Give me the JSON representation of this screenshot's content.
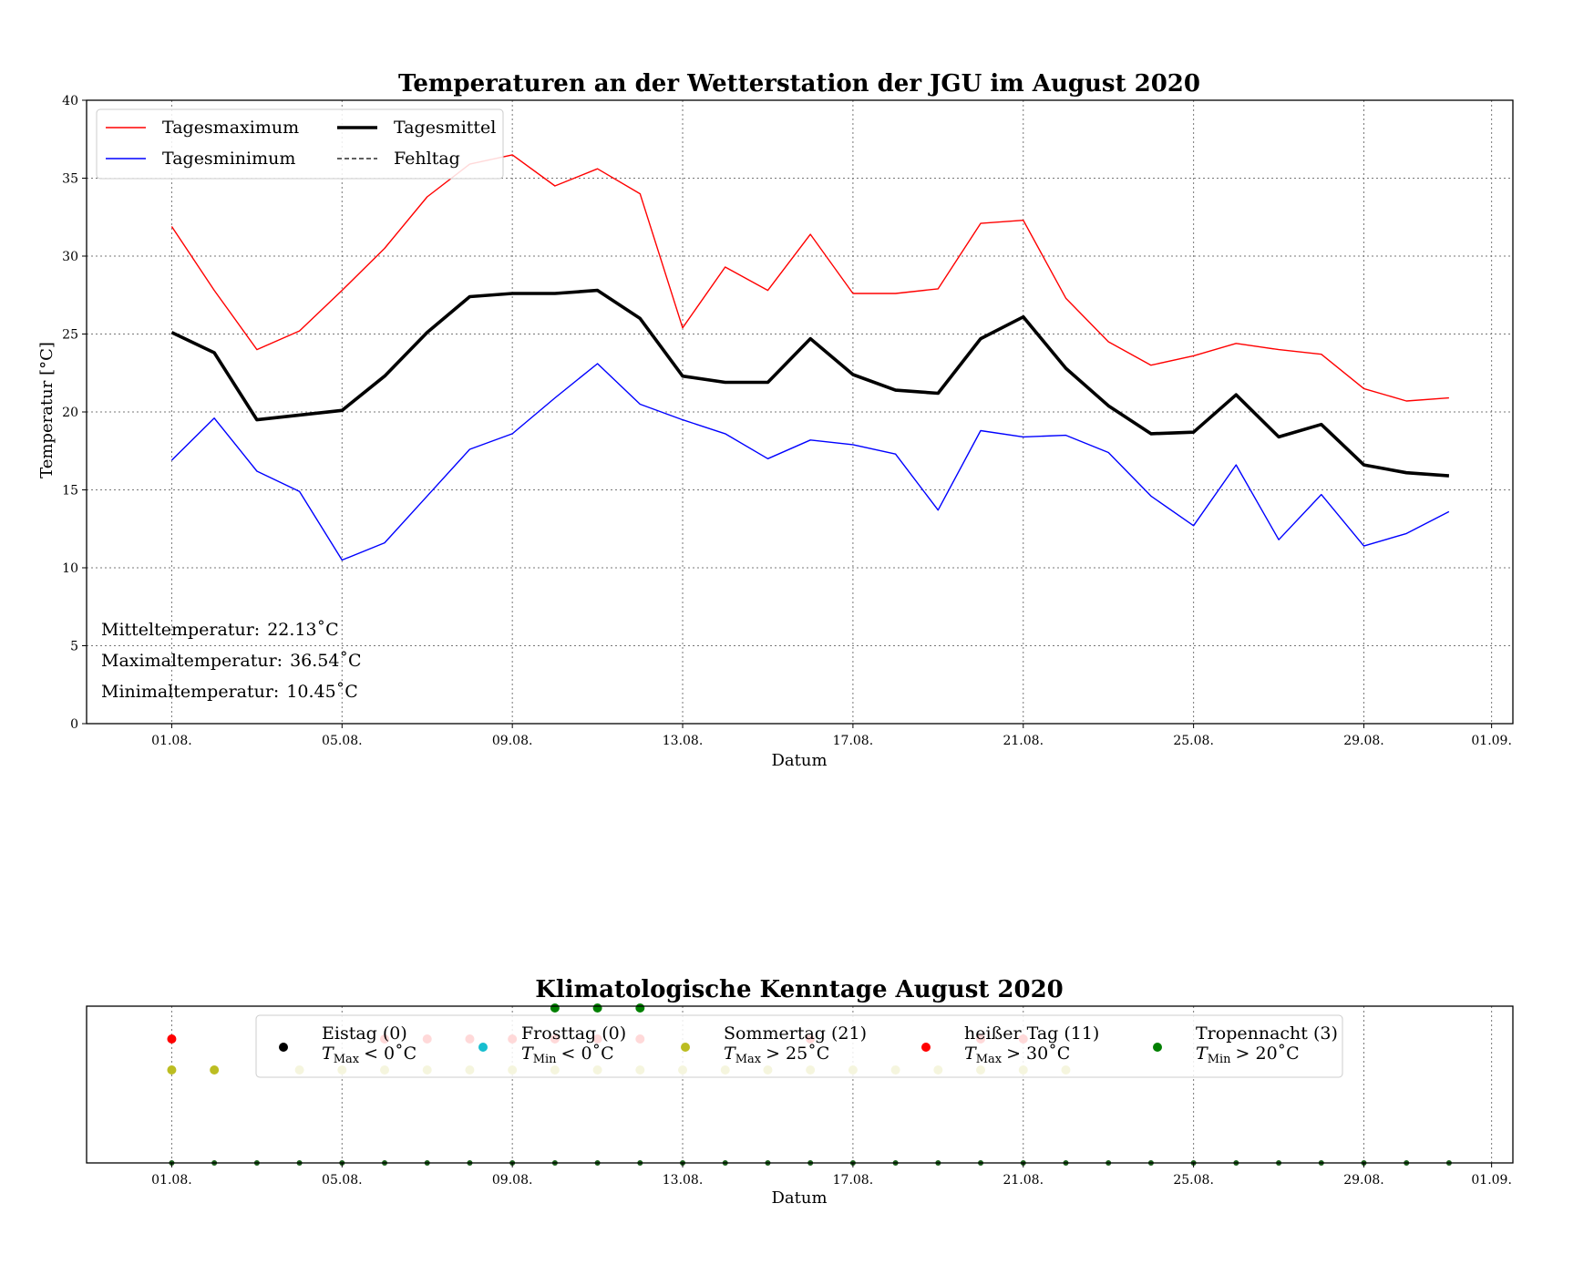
{
  "chart_data": [
    {
      "type": "line",
      "title": "Temperaturen an der Wetterstation der JGU im August 2020",
      "xlabel": "Datum",
      "ylabel": "Temperatur [°C]",
      "ylim": [
        0,
        40
      ],
      "yticks": [
        0,
        5,
        10,
        15,
        20,
        25,
        30,
        35,
        40
      ],
      "xlim": [
        "2020-07-30",
        "2020-09-02"
      ],
      "xtick_days": [
        1,
        5,
        9,
        13,
        17,
        21,
        25,
        29,
        32
      ],
      "xtick_labels": [
        "01.08.",
        "05.08.",
        "09.08.",
        "13.08.",
        "17.08.",
        "21.08.",
        "25.08.",
        "29.08.",
        "01.09."
      ],
      "days": [
        1,
        2,
        3,
        4,
        5,
        6,
        7,
        8,
        9,
        10,
        11,
        12,
        13,
        14,
        15,
        16,
        17,
        18,
        19,
        20,
        21,
        22,
        23,
        24,
        25,
        26,
        27,
        28,
        29,
        30,
        31
      ],
      "grid": true,
      "legend_position": "upper-left",
      "series": [
        {
          "name": "Tagesmaximum",
          "color": "#ff0000",
          "width": 1.4,
          "values": [
            31.9,
            27.8,
            24.0,
            25.2,
            27.8,
            30.5,
            33.8,
            35.9,
            36.5,
            34.5,
            35.6,
            34.0,
            25.4,
            29.3,
            27.8,
            31.4,
            27.6,
            27.6,
            27.9,
            32.1,
            32.3,
            27.3,
            24.5,
            23.0,
            23.6,
            24.4,
            24.0,
            23.7,
            21.5,
            20.7,
            20.9
          ]
        },
        {
          "name": "Tagesminimum",
          "color": "#0000ff",
          "width": 1.4,
          "values": [
            16.9,
            19.6,
            16.2,
            14.9,
            10.5,
            11.6,
            14.6,
            17.6,
            18.6,
            20.9,
            23.1,
            20.5,
            19.5,
            18.6,
            17.0,
            18.2,
            17.9,
            17.3,
            13.7,
            18.8,
            18.4,
            18.5,
            17.4,
            14.6,
            12.7,
            16.6,
            11.8,
            14.7,
            11.4,
            12.2,
            13.6
          ]
        },
        {
          "name": "Tagesmittel",
          "color": "#000000",
          "width": 3.6,
          "values": [
            25.1,
            23.8,
            19.5,
            19.8,
            20.1,
            22.3,
            25.1,
            27.4,
            27.6,
            27.6,
            27.8,
            26.0,
            22.3,
            21.9,
            21.9,
            24.7,
            22.4,
            21.4,
            21.2,
            24.7,
            26.1,
            22.8,
            20.4,
            18.6,
            18.7,
            21.1,
            18.4,
            19.2,
            16.6,
            16.1,
            15.9
          ]
        }
      ],
      "legend_extra": {
        "name": "Fehltag",
        "color": "#000000",
        "dash": "5,3"
      },
      "stats": [
        {
          "label": "Mitteltemperatur:",
          "value": "22.13",
          "unit": "˚C"
        },
        {
          "label": "Maximaltemperatur:",
          "value": "36.54",
          "unit": "˚C"
        },
        {
          "label": "Minimaltemperatur:",
          "value": "10.45",
          "unit": "˚C"
        }
      ]
    },
    {
      "type": "scatter",
      "title": "Klimatologische Kenntage August 2020",
      "xlabel": "Datum",
      "xtick_labels": [
        "01.08.",
        "05.08.",
        "09.08.",
        "13.08.",
        "17.08.",
        "21.08.",
        "25.08.",
        "29.08.",
        "01.09."
      ],
      "grid": true,
      "legend_position": "upper-center",
      "categories": [
        {
          "name": "Eistag (0)",
          "var": "T",
          "sub": "Max",
          "cond": "< 0˚C",
          "color": "#000000",
          "level": 1,
          "days": []
        },
        {
          "name": "Frosttag (0)",
          "var": "T",
          "sub": "Min",
          "cond": "< 0˚C",
          "color": "#17becf",
          "level": 2,
          "days": []
        },
        {
          "name": "Sommertag (21)",
          "var": "T",
          "sub": "Max",
          "cond": "> 25˚C",
          "color": "#bcbd22",
          "level": 3,
          "days": [
            1,
            2,
            4,
            5,
            6,
            7,
            8,
            9,
            10,
            11,
            12,
            13,
            14,
            15,
            16,
            17,
            18,
            19,
            20,
            21,
            22
          ]
        },
        {
          "name": "heißer Tag (11)",
          "var": "T",
          "sub": "Max",
          "cond": "> 30˚C",
          "color": "#ff0000",
          "level": 4,
          "days": [
            1,
            6,
            7,
            8,
            9,
            10,
            11,
            12,
            16,
            20,
            21
          ]
        },
        {
          "name": "Tropennacht (3)",
          "var": "T",
          "sub": "Min",
          "cond": "> 20˚C",
          "color": "#007f00",
          "level": 5,
          "days": [
            10,
            11,
            12
          ]
        }
      ]
    }
  ]
}
